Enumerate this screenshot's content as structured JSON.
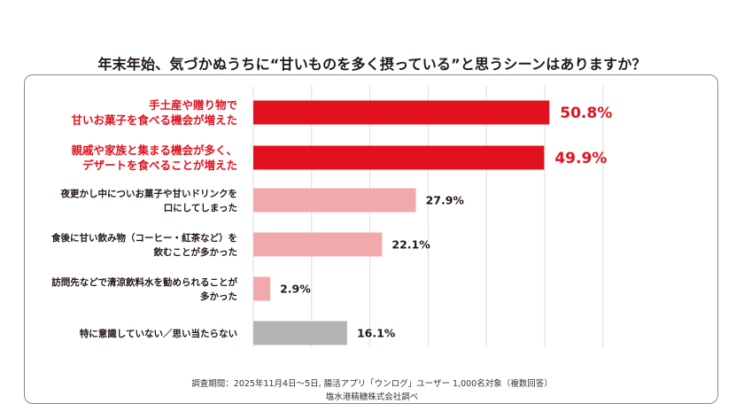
{
  "title": "年末年始、気づかぬうちに“甘いものを多く摂っている”と思うシーンはありますか？",
  "colors": {
    "highlight": "#e2111f",
    "normal": "#f2a9ab",
    "neutral": "#b4b4b4",
    "grid": "#dcdcdc",
    "text": "#231815"
  },
  "chart_data": {
    "type": "bar",
    "orientation": "horizontal",
    "title": "年末年始、気づかぬうちに“甘いものを多く摂っている”と思うシーンはありますか？",
    "xlim": [
      0,
      60
    ],
    "unit": "%",
    "categories": [
      {
        "lines": [
          "手土産や贈り物で",
          "甘いお菓子を食べる機会が増えた"
        ],
        "value": 50.8,
        "label": "50.8%",
        "style": "highlight"
      },
      {
        "lines": [
          "親戚や家族と集まる機会が多く、",
          "デザートを食べることが増えた"
        ],
        "value": 49.9,
        "label": "49.9%",
        "style": "highlight"
      },
      {
        "lines": [
          "夜更かし中についお菓子や甘いドリンクを",
          "口にしてしまった"
        ],
        "value": 27.9,
        "label": "27.9%",
        "style": "normal"
      },
      {
        "lines": [
          "食後に甘い飲み物（コーヒー・紅茶など）を",
          "飲むことが多かった"
        ],
        "value": 22.1,
        "label": "22.1%",
        "style": "normal"
      },
      {
        "lines": [
          "訪問先などで清涼飲料水を勧められることが",
          "多かった"
        ],
        "value": 2.9,
        "label": "2.9%",
        "style": "normal"
      },
      {
        "lines": [
          "特に意識していない／思い当たらない"
        ],
        "value": 16.1,
        "label": "16.1%",
        "style": "neutral"
      }
    ]
  },
  "footnote": {
    "line1": "調査期間：2025年11月4日〜5日, 腸活アプリ「ウンログ」ユーザー 1,000名対象（複数回答）",
    "line2": "塩水港精糖株式会社調べ"
  }
}
